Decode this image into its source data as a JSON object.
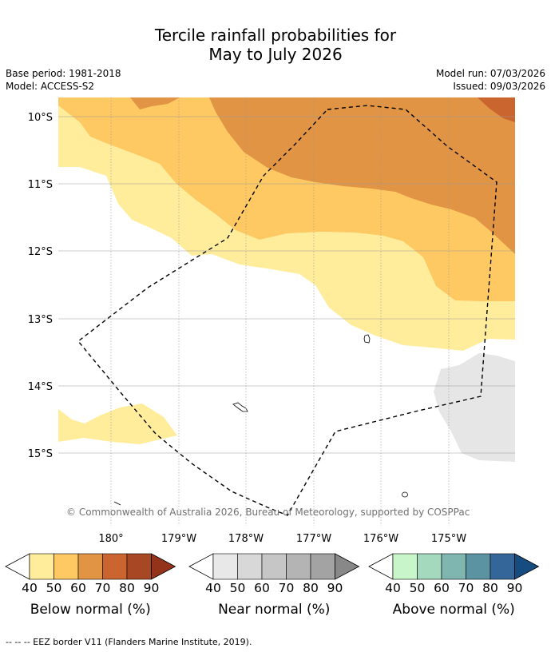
{
  "title_line1": "Tercile rainfall probabilities for",
  "title_line2": "May to July 2026",
  "base_period": "Base period: 1981-2018",
  "model": "Model: ACCESS-S2",
  "model_run": "Model run: 07/03/2026",
  "issued": "Issued: 09/03/2026",
  "lat_labels": [
    "10°S",
    "11°S",
    "12°S",
    "13°S",
    "14°S",
    "15°S"
  ],
  "lon_labels": [
    "180°",
    "179°W",
    "178°W",
    "177°W",
    "176°W",
    "175°W"
  ],
  "copyright": "© Commonwealth of Australia 2026, Bureau of Meteorology, supported by COSPPac",
  "colorbars": [
    {
      "label": "Below normal (%)",
      "ticks": [
        "40",
        "50",
        "60",
        "70",
        "80",
        "90"
      ],
      "colors": [
        "#ffed9c",
        "#fec963",
        "#e09444",
        "#ca652f",
        "#a84724",
        "#92331a"
      ]
    },
    {
      "label": "Near normal (%)",
      "ticks": [
        "40",
        "50",
        "60",
        "70",
        "80",
        "90"
      ],
      "colors": [
        "#e8e8e8",
        "#d8d8d8",
        "#c6c6c6",
        "#b4b4b4",
        "#a3a3a3",
        "#888888"
      ]
    },
    {
      "label": "Above normal (%)",
      "ticks": [
        "40",
        "50",
        "60",
        "70",
        "80",
        "90"
      ],
      "colors": [
        "#c8f5c9",
        "#a4d9bd",
        "#7fb7b0",
        "#5c93a2",
        "#35669a",
        "#174c80"
      ]
    }
  ],
  "footnote": "--  --  -- EEZ border V11 (Flanders Marine Institute, 2019)."
}
